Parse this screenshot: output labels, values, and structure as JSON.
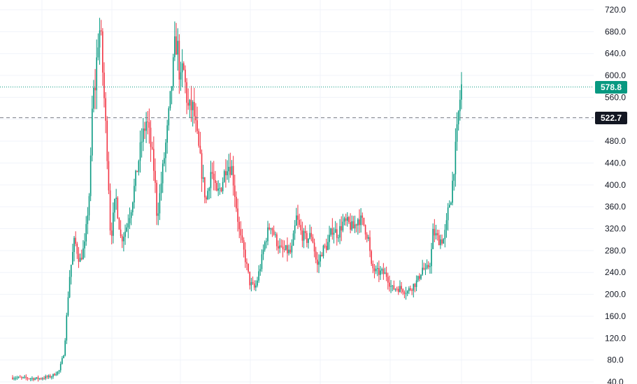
{
  "chart_data": {
    "type": "candlestick",
    "title": "",
    "xlabel": "",
    "ylabel": "",
    "ylim": [
      40,
      720
    ],
    "y_ticks": [
      40,
      80,
      120,
      160,
      200,
      240,
      280,
      320,
      360,
      400,
      440,
      480,
      520,
      560,
      600,
      640,
      680,
      720
    ],
    "y_tick_labels": [
      "40.0",
      "80.0",
      "120.0",
      "160.0",
      "200.0",
      "240.0",
      "280.0",
      "320.0",
      "360.0",
      "400.0",
      "440.0",
      "480.0",
      "520.0",
      "560.0",
      "600.0",
      "640.0",
      "680.0",
      "720.0"
    ],
    "grid": true,
    "last_price": 578.8,
    "last_price_label": "578.8",
    "crosshair_price": 522.7,
    "crosshair_label": "522.7",
    "close_path": [
      [
        0,
        48
      ],
      [
        10,
        46
      ],
      [
        15,
        50
      ],
      [
        18,
        60
      ],
      [
        20,
        95
      ],
      [
        22,
        230
      ],
      [
        24,
        300
      ],
      [
        26,
        260
      ],
      [
        28,
        290
      ],
      [
        30,
        400
      ],
      [
        31,
        560
      ],
      [
        32,
        580
      ],
      [
        33,
        660
      ],
      [
        34,
        690
      ],
      [
        35,
        600
      ],
      [
        37,
        430
      ],
      [
        38,
        300
      ],
      [
        40,
        380
      ],
      [
        42,
        300
      ],
      [
        44,
        320
      ],
      [
        46,
        360
      ],
      [
        48,
        420
      ],
      [
        50,
        480
      ],
      [
        52,
        520
      ],
      [
        53,
        490
      ],
      [
        55,
        420
      ],
      [
        56,
        340
      ],
      [
        58,
        420
      ],
      [
        60,
        500
      ],
      [
        62,
        600
      ],
      [
        63,
        660
      ],
      [
        64,
        650
      ],
      [
        65,
        580
      ],
      [
        66,
        620
      ],
      [
        68,
        540
      ],
      [
        70,
        540
      ],
      [
        72,
        470
      ],
      [
        74,
        400
      ],
      [
        75,
        370
      ],
      [
        77,
        430
      ],
      [
        79,
        380
      ],
      [
        81,
        400
      ],
      [
        83,
        440
      ],
      [
        85,
        430
      ],
      [
        87,
        350
      ],
      [
        88,
        310
      ],
      [
        90,
        270
      ],
      [
        92,
        220
      ],
      [
        94,
        210
      ],
      [
        96,
        250
      ],
      [
        98,
        300
      ],
      [
        100,
        330
      ],
      [
        102,
        300
      ],
      [
        104,
        280
      ],
      [
        106,
        280
      ],
      [
        108,
        275
      ],
      [
        110,
        340
      ],
      [
        112,
        310
      ],
      [
        114,
        300
      ],
      [
        116,
        310
      ],
      [
        118,
        250
      ],
      [
        120,
        280
      ],
      [
        122,
        290
      ],
      [
        124,
        320
      ],
      [
        126,
        310
      ],
      [
        128,
        330
      ],
      [
        130,
        330
      ],
      [
        132,
        320
      ],
      [
        134,
        340
      ],
      [
        136,
        330
      ],
      [
        138,
        300
      ],
      [
        139,
        250
      ],
      [
        141,
        240
      ],
      [
        143,
        240
      ],
      [
        145,
        235
      ],
      [
        147,
        210
      ],
      [
        149,
        212
      ],
      [
        151,
        210
      ],
      [
        153,
        205
      ],
      [
        155,
        215
      ],
      [
        157,
        225
      ],
      [
        159,
        250
      ],
      [
        160,
        240
      ],
      [
        162,
        260
      ],
      [
        163,
        315
      ],
      [
        165,
        300
      ],
      [
        167,
        300
      ],
      [
        168,
        320
      ],
      [
        169,
        360
      ],
      [
        170,
        380
      ],
      [
        171,
        430
      ],
      [
        172,
        480
      ],
      [
        173,
        540
      ],
      [
        174,
        580
      ]
    ]
  }
}
